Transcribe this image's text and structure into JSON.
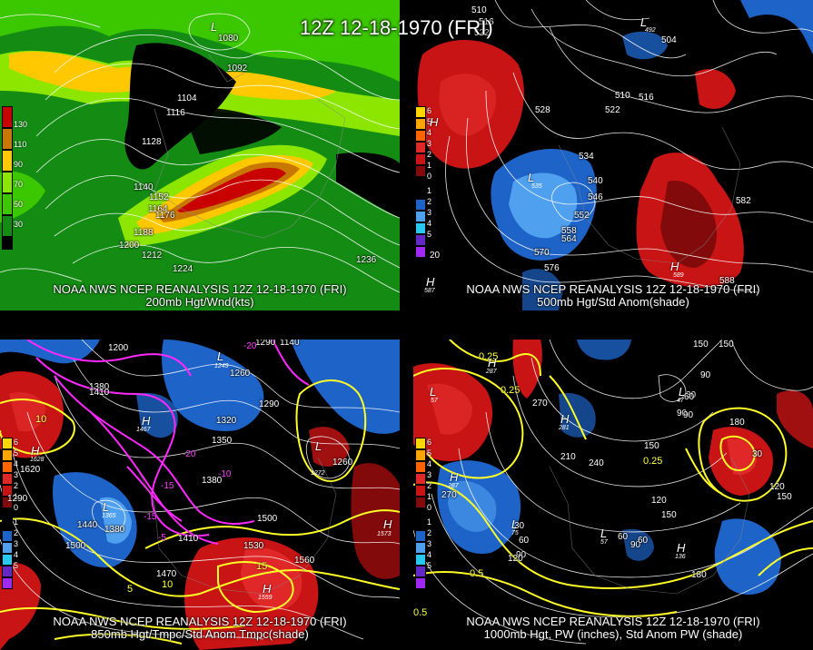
{
  "main_title": "12Z 12-18-1970 (FRI)",
  "panels": {
    "p200": {
      "caption_line1": "NOAA NWS NCEP REANALYSIS 12Z 12-18-1970 (FRI)",
      "caption_line2": "200mb Hgt/Wnd(kts)",
      "legend": [
        "130",
        "110",
        "90",
        "70",
        "50",
        "30"
      ],
      "legend_colors": [
        "#c80000",
        "#c87800",
        "#ffc800",
        "#8ce600",
        "#3cc800",
        "#148c14",
        "#000000"
      ],
      "labels": [
        "1080",
        "1092",
        "1104",
        "1116",
        "1128",
        "1140",
        "1152",
        "1164",
        "1176",
        "1188",
        "1200",
        "1212",
        "1224",
        "1236"
      ],
      "low_letter": "L"
    },
    "p500": {
      "caption_line1": "NOAA NWS NCEP REANALYSIS 12Z 12-18-1970 (FRI)",
      "caption_line2": "500mb Hgt/Std Anom(shade)",
      "legend": [
        "6",
        "5",
        "4",
        "3",
        "2",
        "1",
        "0",
        "1",
        "2",
        "3",
        "4",
        "5"
      ],
      "labels": [
        "510",
        "516",
        "522",
        "504",
        "492",
        "510",
        "516",
        "522",
        "528",
        "534",
        "540",
        "546",
        "552",
        "558",
        "564",
        "570",
        "576",
        "582",
        "588",
        "20"
      ],
      "letters": {
        "L1": "L",
        "L2": "L",
        "H1": "H",
        "H2": "H",
        "H3": "H"
      },
      "subs": {
        "L2": "535",
        "H2": "589",
        "H3": "587",
        "L1": "492"
      }
    },
    "p850": {
      "caption_line1": "NOAA NWS NCEP REANALYSIS 12Z 12-18-1970 (FRI)",
      "caption_line2": "850mb Hgt/Tmpc/Std Anom Tmpc(shade)",
      "legend": [
        "6",
        "5",
        "4",
        "3",
        "2",
        "1",
        "0",
        "1",
        "2",
        "3",
        "4",
        "5"
      ],
      "white_labels": [
        "1200",
        "1290",
        "1140",
        "1380",
        "1410",
        "1260",
        "1290",
        "1320",
        "1350",
        "1380",
        "1530",
        "1560",
        "1500",
        "1470",
        "1440",
        "1410",
        "1500",
        "1620",
        "1290",
        "1380",
        "1260"
      ],
      "yellow_labels": [
        "10",
        "5",
        "10",
        "15"
      ],
      "magenta_labels": [
        "-20",
        "-15",
        "-10",
        "-5",
        "-20",
        "-15"
      ],
      "letters": {
        "L1": "L",
        "L2": "L",
        "L3": "L",
        "H1": "H",
        "H2": "H",
        "H3": "H",
        "H4": "H"
      },
      "subs": {
        "H1": "1467",
        "H2": "1628",
        "H3": "1559",
        "H4": "1573",
        "L2": "1272",
        "L3": "1365",
        "L1": "1249"
      }
    },
    "p1000": {
      "caption_line1": "NOAA NWS NCEP REANALYSIS 12Z 12-18-1970 (FRI)",
      "caption_line2": "1000mb Hgt, PW (inches), Std Anom PW (shade)",
      "legend": [
        "6",
        "5",
        "4",
        "3",
        "2",
        "1",
        "0",
        "1",
        "2",
        "3",
        "4",
        "5"
      ],
      "white_labels": [
        "150",
        "90",
        "150",
        "30",
        "90",
        "60",
        "90",
        "180",
        "270",
        "210",
        "240",
        "150",
        "270",
        "120",
        "150",
        "60",
        "90",
        "30",
        "60",
        "90",
        "120",
        "180",
        "150",
        "120",
        "30",
        "60"
      ],
      "yellow_labels": [
        "0.25",
        "0.25",
        "0.25",
        "0.5",
        "0.5"
      ],
      "letters": {
        "L1": "L",
        "L2": "L",
        "L3": "L",
        "L4": "L",
        "H1": "H",
        "H2": "H",
        "H3": "H",
        "H4": "H"
      },
      "subs": {
        "L1": "57",
        "L2": "47",
        "L3": "75",
        "L4": "57",
        "H1": "287",
        "H2": "281",
        "H3": "136",
        "H4": "287"
      }
    }
  },
  "colors": {
    "red_anom": "#c81414",
    "dark_red_anom": "#820a0a",
    "blue_anom": "#1e64c8",
    "light_blue_anom": "#50a0f0",
    "yellow_line": "#ffff28",
    "magenta_line": "#ff28ff"
  }
}
